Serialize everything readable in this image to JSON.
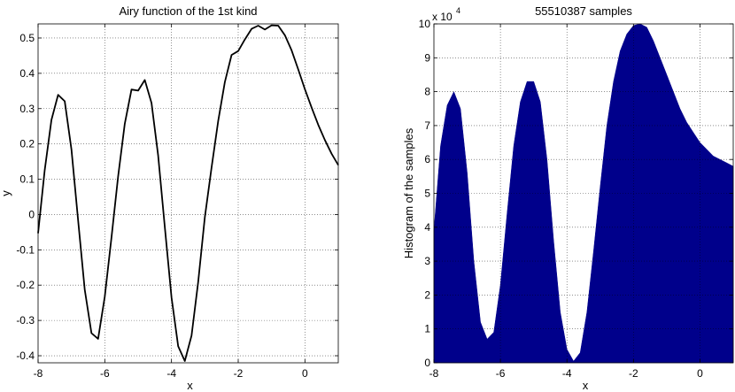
{
  "chart_data": [
    {
      "type": "line",
      "title": "Airy function of the 1st kind",
      "xlabel": "x",
      "ylabel": "y",
      "xlim": [
        -8,
        1
      ],
      "ylim": [
        -0.42,
        0.54
      ],
      "grid": true,
      "xticks": [
        -8,
        -6,
        -4,
        -2,
        0
      ],
      "xtick_labels": [
        "-8",
        "-6",
        "-4",
        "-2",
        "0"
      ],
      "yticks": [
        -0.4,
        -0.3,
        -0.2,
        -0.1,
        0,
        0.1,
        0.2,
        0.3,
        0.4,
        0.5
      ],
      "ytick_labels": [
        "-0.4",
        "-0.3",
        "-0.2",
        "-0.1",
        "0",
        "0.1",
        "0.2",
        "0.3",
        "0.4",
        "0.5"
      ],
      "line_color": "#000000",
      "x": [
        -8.0,
        -7.8,
        -7.6,
        -7.4,
        -7.2,
        -7.0,
        -6.8,
        -6.6,
        -6.4,
        -6.2,
        -6.0,
        -5.8,
        -5.6,
        -5.4,
        -5.2,
        -5.0,
        -4.8,
        -4.6,
        -4.4,
        -4.2,
        -4.0,
        -3.8,
        -3.6,
        -3.4,
        -3.2,
        -3.0,
        -2.8,
        -2.6,
        -2.4,
        -2.2,
        -2.0,
        -1.8,
        -1.6,
        -1.4,
        -1.2,
        -1.0,
        -0.8,
        -0.6,
        -0.4,
        -0.2,
        0.0,
        0.2,
        0.4,
        0.6,
        0.8,
        1.0
      ],
      "y": [
        -0.053,
        0.126,
        0.268,
        0.339,
        0.321,
        0.184,
        -0.016,
        -0.213,
        -0.336,
        -0.352,
        -0.233,
        -0.065,
        0.108,
        0.257,
        0.354,
        0.351,
        0.381,
        0.316,
        0.167,
        -0.035,
        -0.235,
        -0.373,
        -0.415,
        -0.343,
        -0.191,
        -0.008,
        0.133,
        0.265,
        0.375,
        0.452,
        0.463,
        0.496,
        0.526,
        0.535,
        0.524,
        0.536,
        0.535,
        0.508,
        0.465,
        0.411,
        0.355,
        0.303,
        0.254,
        0.211,
        0.172,
        0.14
      ]
    },
    {
      "type": "area",
      "title": "55510387 samples",
      "xlabel": "x",
      "ylabel": "Histogram of the samples",
      "y_multiplier_label": "x 10",
      "y_multiplier_exp": "4",
      "xlim": [
        -8,
        1
      ],
      "ylim": [
        0,
        10
      ],
      "grid": true,
      "fill_color": "#00008b",
      "xticks": [
        -8,
        -6,
        -4,
        -2,
        0
      ],
      "xtick_labels": [
        "-8",
        "-6",
        "-4",
        "-2",
        "0"
      ],
      "yticks": [
        0,
        1,
        2,
        3,
        4,
        5,
        6,
        7,
        8,
        9,
        10
      ],
      "ytick_labels": [
        "0",
        "1",
        "2",
        "3",
        "4",
        "5",
        "6",
        "7",
        "8",
        "9",
        "10"
      ],
      "x": [
        -8.0,
        -7.8,
        -7.6,
        -7.4,
        -7.2,
        -7.0,
        -6.8,
        -6.6,
        -6.4,
        -6.2,
        -6.0,
        -5.8,
        -5.6,
        -5.4,
        -5.2,
        -5.0,
        -4.8,
        -4.6,
        -4.4,
        -4.2,
        -4.0,
        -3.8,
        -3.6,
        -3.4,
        -3.2,
        -3.0,
        -2.8,
        -2.6,
        -2.4,
        -2.2,
        -2.0,
        -1.8,
        -1.6,
        -1.4,
        -1.2,
        -1.0,
        -0.8,
        -0.6,
        -0.4,
        -0.2,
        0.0,
        0.2,
        0.4,
        0.6,
        0.8,
        1.0
      ],
      "values": [
        3.9,
        6.4,
        7.6,
        8.0,
        7.5,
        5.6,
        3.0,
        1.2,
        0.7,
        0.9,
        2.3,
        4.4,
        6.4,
        7.7,
        8.3,
        8.3,
        7.7,
        6.0,
        3.6,
        1.5,
        0.4,
        0.05,
        0.3,
        1.5,
        3.3,
        5.2,
        7.0,
        8.3,
        9.2,
        9.7,
        9.95,
        10.0,
        9.9,
        9.5,
        9.0,
        8.5,
        8.0,
        7.5,
        7.1,
        6.8,
        6.5,
        6.3,
        6.1,
        6.0,
        5.9,
        5.8
      ]
    }
  ]
}
